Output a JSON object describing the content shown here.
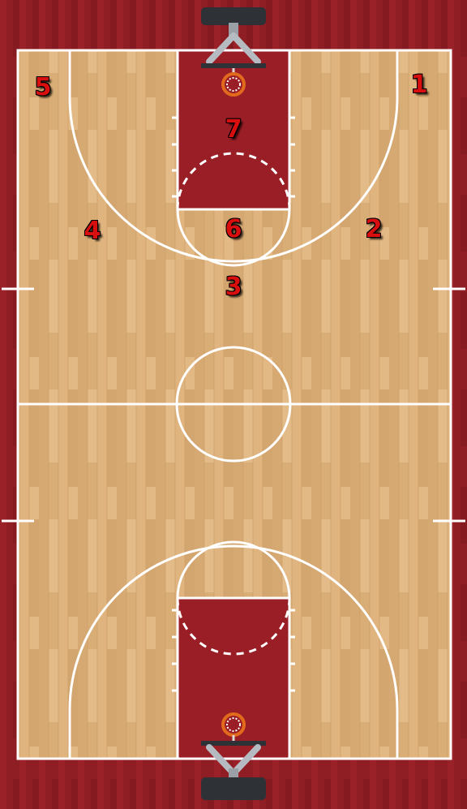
{
  "court": {
    "colors": {
      "floor": "#d9ae78",
      "out_of_bounds": "#8f1d24",
      "paint": "#9a1e26",
      "lines": "#ffffff",
      "backboard": "#2e3236",
      "rim": "#e26a1d"
    }
  },
  "positions": [
    {
      "label": "1"
    },
    {
      "label": "2"
    },
    {
      "label": "3"
    },
    {
      "label": "4"
    },
    {
      "label": "5"
    },
    {
      "label": "6"
    },
    {
      "label": "7"
    }
  ]
}
